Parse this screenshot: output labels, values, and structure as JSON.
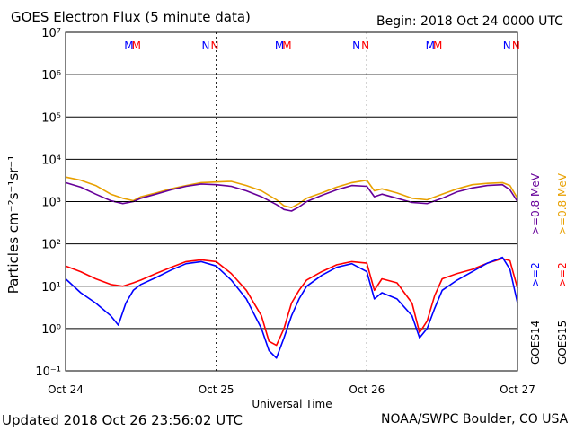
{
  "header": {
    "title": "GOES Electron Flux (5 minute data)",
    "begin": "Begin: 2018 Oct 24 0000 UTC"
  },
  "footer": {
    "updated": "Updated 2018 Oct 26 23:56:02 UTC",
    "credit": "NOAA/SWPC Boulder, CO USA"
  },
  "colors": {
    "goes14_2mev": "#0000ff",
    "goes15_2mev": "#ff0000",
    "goes14_08mev": "#660099",
    "goes15_08mev": "#e8a000",
    "reference_line": "#000000"
  },
  "chart_data": {
    "type": "line",
    "scale": "log",
    "grid": true,
    "xlabel": "Universal Time",
    "ylabel": "Particles cm⁻²s⁻¹sr⁻¹",
    "x_ticks": [
      "Oct 24",
      "Oct 25",
      "Oct 26",
      "Oct 27"
    ],
    "y_ticks": [
      "10⁷",
      "10⁶",
      "10⁵",
      "10⁴",
      "10³",
      "10²",
      "10¹",
      "10⁰",
      "10⁻¹"
    ],
    "ylim": [
      0.1,
      10000000
    ],
    "reference_flux": 1000,
    "markers": [
      {
        "label": "M",
        "time": 0.42,
        "color": "#0000ff"
      },
      {
        "label": "M",
        "time": 0.47,
        "color": "#ff0000"
      },
      {
        "label": "N",
        "time": 0.93,
        "color": "#0000ff"
      },
      {
        "label": "N",
        "time": 0.99,
        "color": "#ff0000"
      },
      {
        "label": "M",
        "time": 1.42,
        "color": "#0000ff"
      },
      {
        "label": "M",
        "time": 1.47,
        "color": "#ff0000"
      },
      {
        "label": "N",
        "time": 1.93,
        "color": "#0000ff"
      },
      {
        "label": "N",
        "time": 1.99,
        "color": "#ff0000"
      },
      {
        "label": "M",
        "time": 2.42,
        "color": "#0000ff"
      },
      {
        "label": "M",
        "time": 2.47,
        "color": "#ff0000"
      },
      {
        "label": "N",
        "time": 2.93,
        "color": "#0000ff"
      },
      {
        "label": "N",
        "time": 2.99,
        "color": "#ff0000"
      }
    ],
    "right_legend": [
      {
        "text": "GOES15",
        "color": "#000000"
      },
      {
        "text": ">=2",
        "color": "#ff0000"
      },
      {
        "text": ">=0.8  MeV",
        "color": "#e8a000"
      },
      {
        "text": "GOES14",
        "color": "#000000"
      },
      {
        "text": ">=2",
        "color": "#0000ff"
      },
      {
        "text": ">=0.8  MeV",
        "color": "#660099"
      }
    ],
    "series": [
      {
        "color": "#e8a000",
        "points": [
          [
            0.0,
            3800
          ],
          [
            0.1,
            3200
          ],
          [
            0.2,
            2400
          ],
          [
            0.3,
            1500
          ],
          [
            0.38,
            1200
          ],
          [
            0.45,
            1050
          ],
          [
            0.5,
            1300
          ],
          [
            0.6,
            1600
          ],
          [
            0.7,
            2000
          ],
          [
            0.8,
            2400
          ],
          [
            0.9,
            2800
          ],
          [
            1.0,
            2900
          ],
          [
            1.1,
            3000
          ],
          [
            1.2,
            2400
          ],
          [
            1.3,
            1800
          ],
          [
            1.4,
            1100
          ],
          [
            1.45,
            800
          ],
          [
            1.5,
            720
          ],
          [
            1.55,
            900
          ],
          [
            1.6,
            1200
          ],
          [
            1.7,
            1600
          ],
          [
            1.8,
            2200
          ],
          [
            1.9,
            2800
          ],
          [
            2.0,
            3200
          ],
          [
            2.05,
            1800
          ],
          [
            2.1,
            2000
          ],
          [
            2.2,
            1600
          ],
          [
            2.3,
            1200
          ],
          [
            2.4,
            1100
          ],
          [
            2.5,
            1500
          ],
          [
            2.6,
            2000
          ],
          [
            2.7,
            2500
          ],
          [
            2.8,
            2700
          ],
          [
            2.9,
            2800
          ],
          [
            2.95,
            2400
          ],
          [
            3.0,
            1200
          ]
        ]
      },
      {
        "color": "#660099",
        "points": [
          [
            0.0,
            2800
          ],
          [
            0.1,
            2200
          ],
          [
            0.2,
            1500
          ],
          [
            0.3,
            1050
          ],
          [
            0.38,
            900
          ],
          [
            0.45,
            1000
          ],
          [
            0.5,
            1200
          ],
          [
            0.6,
            1500
          ],
          [
            0.7,
            1900
          ],
          [
            0.8,
            2300
          ],
          [
            0.9,
            2600
          ],
          [
            1.0,
            2500
          ],
          [
            1.1,
            2300
          ],
          [
            1.2,
            1800
          ],
          [
            1.3,
            1300
          ],
          [
            1.4,
            850
          ],
          [
            1.45,
            650
          ],
          [
            1.5,
            600
          ],
          [
            1.55,
            750
          ],
          [
            1.6,
            1000
          ],
          [
            1.7,
            1400
          ],
          [
            1.8,
            1900
          ],
          [
            1.9,
            2400
          ],
          [
            2.0,
            2300
          ],
          [
            2.05,
            1300
          ],
          [
            2.1,
            1500
          ],
          [
            2.2,
            1200
          ],
          [
            2.3,
            950
          ],
          [
            2.4,
            900
          ],
          [
            2.5,
            1200
          ],
          [
            2.6,
            1700
          ],
          [
            2.7,
            2100
          ],
          [
            2.8,
            2400
          ],
          [
            2.9,
            2500
          ],
          [
            2.95,
            1900
          ],
          [
            3.0,
            1000
          ]
        ]
      },
      {
        "color": "#ff0000",
        "points": [
          [
            0.0,
            30
          ],
          [
            0.1,
            22
          ],
          [
            0.2,
            15
          ],
          [
            0.3,
            11
          ],
          [
            0.38,
            10
          ],
          [
            0.45,
            12
          ],
          [
            0.5,
            14
          ],
          [
            0.6,
            20
          ],
          [
            0.7,
            28
          ],
          [
            0.8,
            38
          ],
          [
            0.9,
            42
          ],
          [
            1.0,
            38
          ],
          [
            1.1,
            20
          ],
          [
            1.2,
            8
          ],
          [
            1.3,
            2
          ],
          [
            1.35,
            0.5
          ],
          [
            1.4,
            0.4
          ],
          [
            1.45,
            1
          ],
          [
            1.5,
            4
          ],
          [
            1.55,
            8
          ],
          [
            1.6,
            14
          ],
          [
            1.7,
            22
          ],
          [
            1.8,
            32
          ],
          [
            1.9,
            38
          ],
          [
            2.0,
            35
          ],
          [
            2.05,
            8
          ],
          [
            2.1,
            15
          ],
          [
            2.2,
            12
          ],
          [
            2.3,
            4
          ],
          [
            2.35,
            0.8
          ],
          [
            2.4,
            1.5
          ],
          [
            2.45,
            6
          ],
          [
            2.5,
            15
          ],
          [
            2.6,
            20
          ],
          [
            2.7,
            25
          ],
          [
            2.8,
            35
          ],
          [
            2.9,
            45
          ],
          [
            2.95,
            40
          ],
          [
            3.0,
            9
          ]
        ]
      },
      {
        "color": "#0000ff",
        "points": [
          [
            0.0,
            15
          ],
          [
            0.1,
            7
          ],
          [
            0.2,
            4
          ],
          [
            0.3,
            2
          ],
          [
            0.35,
            1.2
          ],
          [
            0.4,
            4
          ],
          [
            0.45,
            8
          ],
          [
            0.5,
            11
          ],
          [
            0.6,
            16
          ],
          [
            0.7,
            24
          ],
          [
            0.8,
            34
          ],
          [
            0.9,
            38
          ],
          [
            1.0,
            30
          ],
          [
            1.1,
            14
          ],
          [
            1.2,
            5
          ],
          [
            1.3,
            1
          ],
          [
            1.35,
            0.3
          ],
          [
            1.4,
            0.2
          ],
          [
            1.45,
            0.6
          ],
          [
            1.5,
            2
          ],
          [
            1.55,
            5
          ],
          [
            1.6,
            10
          ],
          [
            1.7,
            18
          ],
          [
            1.8,
            28
          ],
          [
            1.9,
            34
          ],
          [
            2.0,
            22
          ],
          [
            2.05,
            5
          ],
          [
            2.1,
            7
          ],
          [
            2.2,
            5
          ],
          [
            2.3,
            2
          ],
          [
            2.35,
            0.6
          ],
          [
            2.4,
            1
          ],
          [
            2.45,
            3
          ],
          [
            2.5,
            8
          ],
          [
            2.6,
            14
          ],
          [
            2.7,
            22
          ],
          [
            2.8,
            35
          ],
          [
            2.9,
            48
          ],
          [
            2.95,
            25
          ],
          [
            3.0,
            4
          ]
        ]
      }
    ]
  }
}
